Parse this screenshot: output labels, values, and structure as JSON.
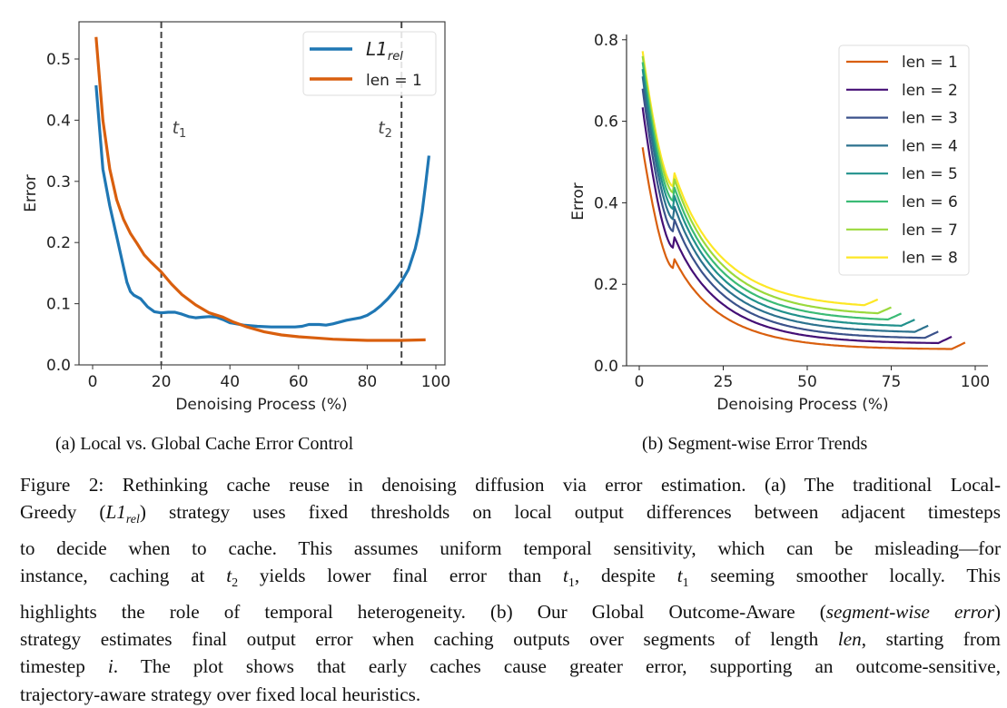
{
  "chart_data": [
    {
      "type": "line",
      "title": "",
      "xlabel": "Denoising Process (%)",
      "ylabel": "Error",
      "xlim": [
        -4,
        103
      ],
      "ylim": [
        0.0,
        0.56
      ],
      "xticks": [
        "0",
        "20",
        "40",
        "60",
        "80",
        "100"
      ],
      "xtick_values": [
        0,
        20,
        40,
        60,
        80,
        100
      ],
      "yticks": [
        "0.0",
        "0.1",
        "0.2",
        "0.3",
        "0.4",
        "0.5"
      ],
      "ytick_values": [
        0.0,
        0.1,
        0.2,
        0.3,
        0.4,
        0.5
      ],
      "legend_position": "top-right",
      "grid": false,
      "vlines": [
        {
          "x": 20,
          "label": "t",
          "sub": "1",
          "color": "#444444"
        },
        {
          "x": 90,
          "label": "t",
          "sub": "2",
          "color": "#444444"
        }
      ],
      "series": [
        {
          "name": "L1",
          "name_sub": "rel",
          "color": "#1f77b4",
          "x": [
            1,
            3,
            5,
            7,
            9,
            10,
            11,
            12,
            14,
            16,
            18,
            20,
            22,
            24,
            26,
            28,
            30,
            32,
            34,
            36,
            38,
            40,
            44,
            48,
            52,
            56,
            59,
            61,
            63,
            66,
            68,
            70,
            74,
            78,
            80,
            82,
            84,
            86,
            88,
            90,
            92,
            94,
            95,
            96,
            97,
            98
          ],
          "y": [
            0.457,
            0.32,
            0.26,
            0.21,
            0.16,
            0.135,
            0.12,
            0.114,
            0.108,
            0.095,
            0.087,
            0.085,
            0.086,
            0.086,
            0.083,
            0.079,
            0.077,
            0.078,
            0.079,
            0.078,
            0.074,
            0.069,
            0.065,
            0.063,
            0.062,
            0.062,
            0.062,
            0.063,
            0.066,
            0.066,
            0.065,
            0.067,
            0.073,
            0.077,
            0.081,
            0.088,
            0.097,
            0.108,
            0.121,
            0.136,
            0.156,
            0.19,
            0.215,
            0.25,
            0.295,
            0.342
          ]
        },
        {
          "name": "len = 1",
          "color": "#d95f0e",
          "x": [
            1,
            3,
            5,
            7,
            9,
            11,
            13,
            15,
            17,
            20,
            23,
            26,
            30,
            34,
            38,
            41,
            45,
            50,
            55,
            60,
            65,
            70,
            75,
            80,
            85,
            90,
            97
          ],
          "y": [
            0.536,
            0.4,
            0.32,
            0.27,
            0.238,
            0.215,
            0.198,
            0.18,
            0.168,
            0.152,
            0.132,
            0.115,
            0.098,
            0.085,
            0.078,
            0.07,
            0.062,
            0.054,
            0.049,
            0.046,
            0.044,
            0.042,
            0.041,
            0.04,
            0.04,
            0.04,
            0.041
          ]
        }
      ]
    },
    {
      "type": "line",
      "title": "",
      "xlabel": "Denoising Process (%)",
      "ylabel": "Error",
      "xlim": [
        -4,
        101
      ],
      "ylim": [
        0.0,
        0.81
      ],
      "xticks": [
        "0",
        "25",
        "50",
        "75",
        "100"
      ],
      "xtick_values": [
        0,
        25,
        50,
        75,
        100
      ],
      "yticks": [
        "0.0",
        "0.2",
        "0.4",
        "0.6",
        "0.8"
      ],
      "ytick_values": [
        0.0,
        0.2,
        0.4,
        0.6,
        0.8
      ],
      "legend_position": "top-right",
      "grid": false,
      "series": [
        {
          "name": "len = 1",
          "color": "#d95f0e",
          "start": 0.536,
          "mid": 0.24,
          "tail": 0.04,
          "x_end": 97
        },
        {
          "name": "len = 2",
          "color": "#440f76",
          "start": 0.634,
          "mid": 0.29,
          "tail": 0.054,
          "x_end": 93
        },
        {
          "name": "len = 3",
          "color": "#3b528b",
          "start": 0.68,
          "mid": 0.33,
          "tail": 0.066,
          "x_end": 89
        },
        {
          "name": "len = 4",
          "color": "#2c728e",
          "start": 0.71,
          "mid": 0.36,
          "tail": 0.08,
          "x_end": 86
        },
        {
          "name": "len = 5",
          "color": "#21918c",
          "start": 0.728,
          "mid": 0.385,
          "tail": 0.094,
          "x_end": 82
        },
        {
          "name": "len = 6",
          "color": "#3bbb75",
          "start": 0.745,
          "mid": 0.405,
          "tail": 0.108,
          "x_end": 78
        },
        {
          "name": "len = 7",
          "color": "#9bd93c",
          "start": 0.76,
          "mid": 0.425,
          "tail": 0.122,
          "x_end": 75
        },
        {
          "name": "len = 8",
          "color": "#fde725",
          "start": 0.772,
          "mid": 0.44,
          "tail": 0.14,
          "x_end": 71
        }
      ]
    }
  ],
  "subcaptions": {
    "a": "(a) Local vs. Global Cache Error Control",
    "b": "(b) Segment-wise Error Trends"
  },
  "caption": {
    "l1": "Figure 2: Rethinking cache reuse in denoising diffusion via error estimation. (a) The traditional Local-",
    "l2a": "Greedy (",
    "l2m": "L1",
    "l2sub": "rel",
    "l2b": ") strategy uses fixed thresholds on local output differences between adjacent timesteps",
    "l3": "to decide when to cache. This assumes uniform temporal sensitivity, which can be misleading—for",
    "l4a": "instance, caching at ",
    "l4t": "t",
    "l4s2": "2",
    "l4b": " yields lower final error than ",
    "l4s1": "1",
    "l4c": ", despite ",
    "l4d": " seeming smoother locally.  This",
    "l5a": "highlights the role of temporal heterogeneity. (b) Our Global Outcome-Aware (",
    "l5i": "segment-wise error",
    "l5b": ")",
    "l6a": "strategy estimates final output error when caching outputs over segments of length ",
    "l6m": "len",
    "l6b": ", starting from",
    "l7a": "timestep ",
    "l7m": "i",
    "l7b": ". The plot shows that early caches cause greater error, supporting an outcome-sensitive,",
    "l8": "trajectory-aware strategy over fixed local heuristics."
  }
}
